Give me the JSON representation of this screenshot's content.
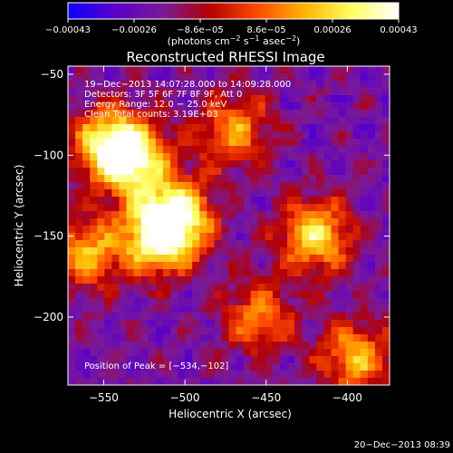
{
  "chart_data": {
    "type": "heatmap",
    "title": "Reconstructed RHESSI Image",
    "xlabel": "Heliocentric X (arcsec)",
    "ylabel": "Heliocentric Y (arcsec)",
    "xlim": [
      -572,
      -374
    ],
    "ylim": [
      -242,
      -45
    ],
    "x_ticks": [
      -550,
      -500,
      -450,
      -400
    ],
    "x_tick_labels": [
      "−550",
      "−500",
      "−450",
      "−400"
    ],
    "y_ticks": [
      -50,
      -100,
      -150,
      -200
    ],
    "y_tick_labels": [
      "−50",
      "−100",
      "−150",
      "−200"
    ],
    "colorbar": {
      "range": [
        -0.00043,
        0.00043
      ],
      "tick_labels": [
        "−0.00043",
        "−0.00026",
        "−8.6e−05",
        "8.6e−05",
        "0.00026",
        "0.00043"
      ],
      "unit_text": "(photons cm",
      "unit_sup1": "−2",
      "unit_mid": " s",
      "unit_sup2": "−1",
      "unit_end": " asec",
      "unit_sup3": "−2",
      "unit_close": ")",
      "colormap": [
        "#0b00ff",
        "#5a00c8",
        "#7a1a9a",
        "#b50000",
        "#ff4a00",
        "#ffb300",
        "#ffff60",
        "#ffffff"
      ]
    },
    "annotations": [
      "19−Dec−2013 14:07:28.000 to 14:09:28.000",
      "Detectors: 3F 5F 6F 7F 8F 9F, Att 0",
      "Energy Range: 12.0 − 25.0 keV",
      "Clean    Total counts: 3.19E+03"
    ],
    "peak_label": "Position of Peak = [−534,−102]",
    "peak": [
      -534,
      -102
    ],
    "sources": [
      {
        "x": -515,
        "y": -150,
        "intensity": 0.95
      },
      {
        "x": -505,
        "y": -135,
        "intensity": 0.7
      },
      {
        "x": -534,
        "y": -102,
        "intensity": 0.9
      },
      {
        "x": -548,
        "y": -92,
        "intensity": 0.6
      },
      {
        "x": -560,
        "y": -160,
        "intensity": 0.6
      },
      {
        "x": -420,
        "y": -150,
        "intensity": 0.75
      },
      {
        "x": -395,
        "y": -225,
        "intensity": 0.6
      },
      {
        "x": -470,
        "y": -85,
        "intensity": 0.55
      },
      {
        "x": -455,
        "y": -200,
        "intensity": 0.5
      }
    ]
  },
  "footer": {
    "timestamp": "20−Dec−2013 08:39"
  }
}
